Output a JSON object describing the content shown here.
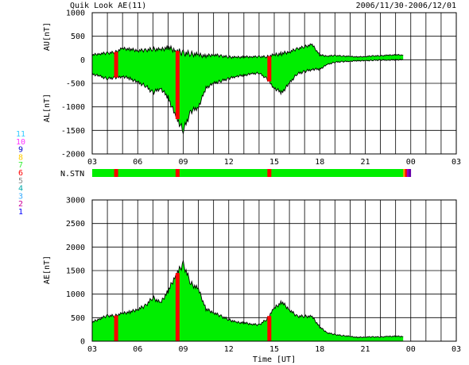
{
  "header": {
    "title": "Quik Look AE(11)",
    "date_range": "2006/11/30-2006/12/01"
  },
  "upper_panel": {
    "ylabel_top": "AU[nT]",
    "ylabel_bottom": "AL[nT]",
    "y_ticks": [
      "1000",
      "500",
      "0",
      "-500",
      "-1000",
      "-1500",
      "-2000"
    ]
  },
  "station_bar": {
    "label": "N.STN",
    "legend": [
      {
        "n": "11",
        "color": "#33ccff"
      },
      {
        "n": "10",
        "color": "#ff33ff"
      },
      {
        "n": "9",
        "color": "#0000cc"
      },
      {
        "n": "8",
        "color": "#ffcc00"
      },
      {
        "n": "7",
        "color": "#33ee33"
      },
      {
        "n": "6",
        "color": "#ff0000"
      },
      {
        "n": "5",
        "color": "#888888"
      },
      {
        "n": "4",
        "color": "#00aaaa"
      },
      {
        "n": "3",
        "color": "#33aaff"
      },
      {
        "n": "2",
        "color": "#cc0099"
      },
      {
        "n": "1",
        "color": "#0000ff"
      }
    ]
  },
  "lower_panel": {
    "ylabel": "AE[nT]",
    "y_ticks": [
      "3000",
      "2500",
      "2000",
      "1500",
      "1000",
      "500",
      "0"
    ],
    "xlabel": "Time [UT]"
  },
  "x_ticks": [
    "03",
    "06",
    "09",
    "12",
    "15",
    "18",
    "21",
    "00",
    "03"
  ],
  "chart_data": [
    {
      "type": "area",
      "name": "AU/AL",
      "x_unit": "hours since 03 UT",
      "ylim": [
        -2000,
        1000
      ],
      "xlim": [
        0,
        24
      ],
      "grid": true,
      "x": [
        0,
        0.5,
        1,
        1.5,
        2,
        2.5,
        3,
        3.5,
        4,
        4.5,
        5,
        5.5,
        6,
        6.5,
        7,
        7.5,
        8,
        8.5,
        9,
        9.5,
        10,
        10.5,
        11,
        11.5,
        12,
        12.5,
        13,
        13.5,
        14,
        14.5,
        15,
        15.5,
        16,
        16.5,
        17,
        17.5,
        18,
        18.5,
        19,
        19.5,
        20,
        20.5
      ],
      "au": [
        100,
        130,
        140,
        160,
        240,
        220,
        200,
        200,
        230,
        210,
        260,
        200,
        140,
        130,
        100,
        80,
        110,
        80,
        60,
        50,
        60,
        65,
        65,
        65,
        100,
        130,
        170,
        230,
        280,
        320,
        100,
        80,
        90,
        80,
        70,
        60,
        70,
        80,
        85,
        95,
        105,
        100
      ],
      "al": [
        -300,
        -350,
        -400,
        -380,
        -350,
        -400,
        -480,
        -550,
        -700,
        -600,
        -800,
        -1200,
        -1500,
        -1100,
        -1000,
        -600,
        -500,
        -450,
        -400,
        -350,
        -330,
        -300,
        -280,
        -400,
        -600,
        -700,
        -500,
        -300,
        -250,
        -200,
        -200,
        -100,
        -50,
        -40,
        -30,
        -20,
        -20,
        -10,
        -5,
        -5,
        0,
        0
      ],
      "red_bands_hours": [
        1.55,
        5.6,
        11.65
      ]
    },
    {
      "type": "area",
      "name": "AE",
      "x_unit": "hours since 03 UT",
      "ylim": [
        0,
        3000
      ],
      "xlim": [
        0,
        24
      ],
      "grid": true,
      "x": [
        0,
        0.5,
        1,
        1.5,
        2,
        2.5,
        3,
        3.5,
        4,
        4.5,
        5,
        5.5,
        6,
        6.5,
        7,
        7.5,
        8,
        8.5,
        9,
        9.5,
        10,
        10.5,
        11,
        11.5,
        12,
        12.5,
        13,
        13.5,
        14,
        14.5,
        15,
        15.5,
        16,
        16.5,
        17,
        17.5,
        18,
        18.5,
        19,
        19.5,
        20,
        20.5
      ],
      "values": [
        400,
        480,
        540,
        540,
        590,
        620,
        680,
        750,
        930,
        810,
        1060,
        1400,
        1640,
        1230,
        1100,
        680,
        610,
        530,
        460,
        400,
        390,
        365,
        345,
        465,
        700,
        830,
        670,
        530,
        530,
        520,
        300,
        180,
        140,
        120,
        100,
        80,
        90,
        90,
        90,
        100,
        105,
        100
      ],
      "red_bands_hours": [
        1.55,
        5.6,
        11.65
      ]
    }
  ]
}
